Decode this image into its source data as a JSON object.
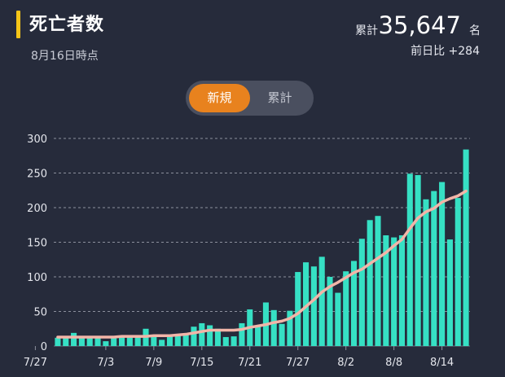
{
  "header": {
    "title": "死亡者数",
    "subtitle": "8月16日時点",
    "total_label": "累計",
    "total_value": "35,647",
    "total_unit": "名",
    "diff": "前日比 +284"
  },
  "toggle": {
    "new_label": "新規",
    "cumulative_label": "累計"
  },
  "colors": {
    "accent": "#f5c518",
    "toggle_active": "#e8821e",
    "bar": "#36e0c4",
    "line": "#f2b5a8"
  },
  "chart_data": {
    "type": "bar",
    "ylim": [
      0,
      300
    ],
    "yticks": [
      0,
      50,
      100,
      150,
      200,
      250,
      300
    ],
    "xtick_labels": [
      "7/27",
      "7/3",
      "7/9",
      "7/15",
      "7/21",
      "7/27",
      "8/2",
      "8/8",
      "8/14"
    ],
    "series": [
      {
        "values": [
          12,
          13,
          19,
          13,
          13,
          13,
          7,
          12,
          14,
          13,
          13,
          25,
          14,
          9,
          15,
          15,
          16,
          28,
          33,
          30,
          25,
          13,
          14,
          33,
          53,
          30,
          63,
          52,
          32,
          51,
          107,
          121,
          115,
          129,
          100,
          77,
          108,
          123,
          155,
          182,
          188,
          160,
          157,
          160,
          249,
          247,
          212,
          224,
          237,
          154,
          214,
          284
        ]
      },
      {
        "values": [
          13,
          13,
          13,
          13,
          13,
          13,
          13,
          13,
          14,
          14,
          14,
          14,
          15,
          15,
          15,
          16,
          17,
          19,
          21,
          23,
          23,
          23,
          23,
          24,
          27,
          29,
          31,
          34,
          36,
          40,
          47,
          57,
          67,
          78,
          86,
          92,
          99,
          106,
          111,
          119,
          127,
          135,
          145,
          154,
          170,
          185,
          194,
          199,
          208,
          213,
          217,
          224
        ]
      }
    ]
  }
}
